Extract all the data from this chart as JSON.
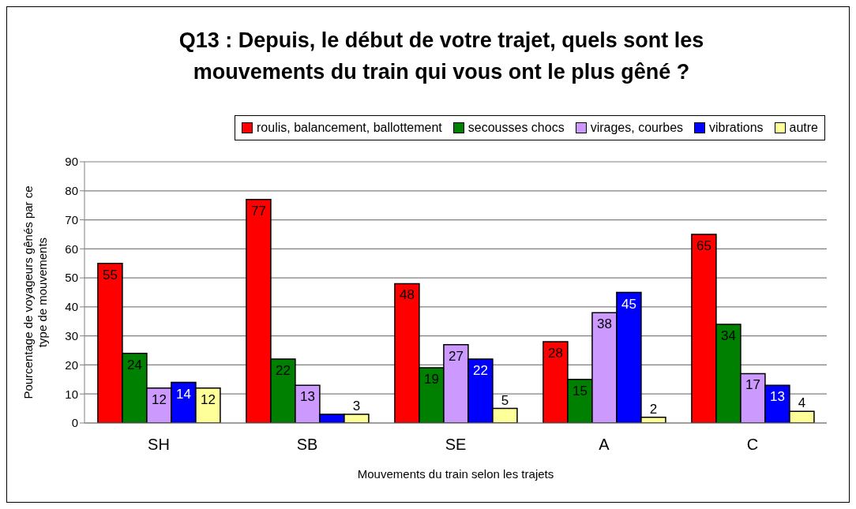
{
  "chart_data": {
    "type": "bar",
    "title": "Q13 : Depuis, le début de votre trajet, quels sont les mouvements du train qui vous ont le plus gêné ?",
    "xlabel": "Mouvements du train selon les trajets",
    "ylabel": "Pourcentage de voyageurs gênés par ce type de mouvements",
    "categories": [
      "SH",
      "SB",
      "SE",
      "A",
      "C"
    ],
    "series": [
      {
        "name": "roulis, balancement, ballottement",
        "color": "#ff0000",
        "values": [
          55,
          77,
          48,
          28,
          65
        ],
        "value_labels": [
          "55",
          "77",
          "48",
          "28",
          "65"
        ]
      },
      {
        "name": "secousses chocs",
        "color": "#008000",
        "values": [
          24,
          22,
          19,
          15,
          34
        ],
        "value_labels": [
          "24",
          "22",
          "19",
          "15",
          "34"
        ]
      },
      {
        "name": "virages, courbes",
        "color": "#cc99ff",
        "values": [
          12,
          13,
          27,
          38,
          17
        ],
        "value_labels": [
          "12",
          "13",
          "27",
          "38",
          "17"
        ]
      },
      {
        "name": "vibrations",
        "color": "#0000ff",
        "values": [
          14,
          3,
          22,
          45,
          13
        ],
        "value_labels": [
          "14",
          null,
          "22",
          "45",
          "13"
        ]
      },
      {
        "name": "autre",
        "color": "#ffff99",
        "values": [
          12,
          3,
          5,
          2,
          4
        ],
        "value_labels": [
          "12",
          "3",
          "5",
          "2",
          "4"
        ]
      }
    ],
    "ylim": [
      0,
      90
    ],
    "yticks": [
      0,
      10,
      20,
      30,
      40,
      50,
      60,
      70,
      80,
      90
    ],
    "grid": "y",
    "legend": "top right"
  }
}
